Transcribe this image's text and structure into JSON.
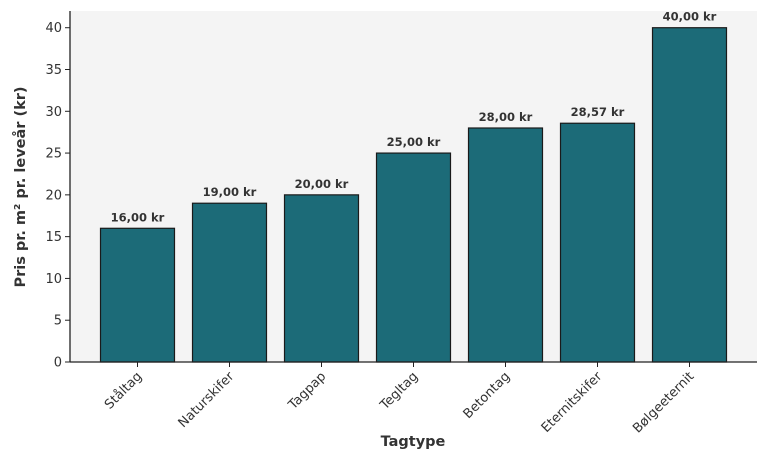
{
  "chart_data": {
    "type": "bar",
    "title": "",
    "xlabel": "Tagtype",
    "ylabel": "Pris pr. m² pr. leveår (kr)",
    "categories": [
      "Ståltag",
      "Naturskifer",
      "Tagpap",
      "Tegltag",
      "Betontag",
      "Eternitskifer",
      "Bølgeeternit"
    ],
    "values": [
      16.0,
      19.0,
      20.0,
      25.0,
      28.0,
      28.57,
      40.0
    ],
    "value_labels": [
      "16,00 kr",
      "19,00 kr",
      "20,00 kr",
      "25,00 kr",
      "28,00 kr",
      "28,57 kr",
      "40,00 kr"
    ],
    "ylim": [
      0,
      42
    ],
    "yticks": [
      0,
      5,
      10,
      15,
      20,
      25,
      30,
      35,
      40
    ],
    "grid": false,
    "legend": null,
    "colors": {
      "bar": "#1c6b78",
      "bar_edge": "#1a1a1a",
      "plot_bg": "#f4f4f4",
      "text": "#333333"
    }
  }
}
